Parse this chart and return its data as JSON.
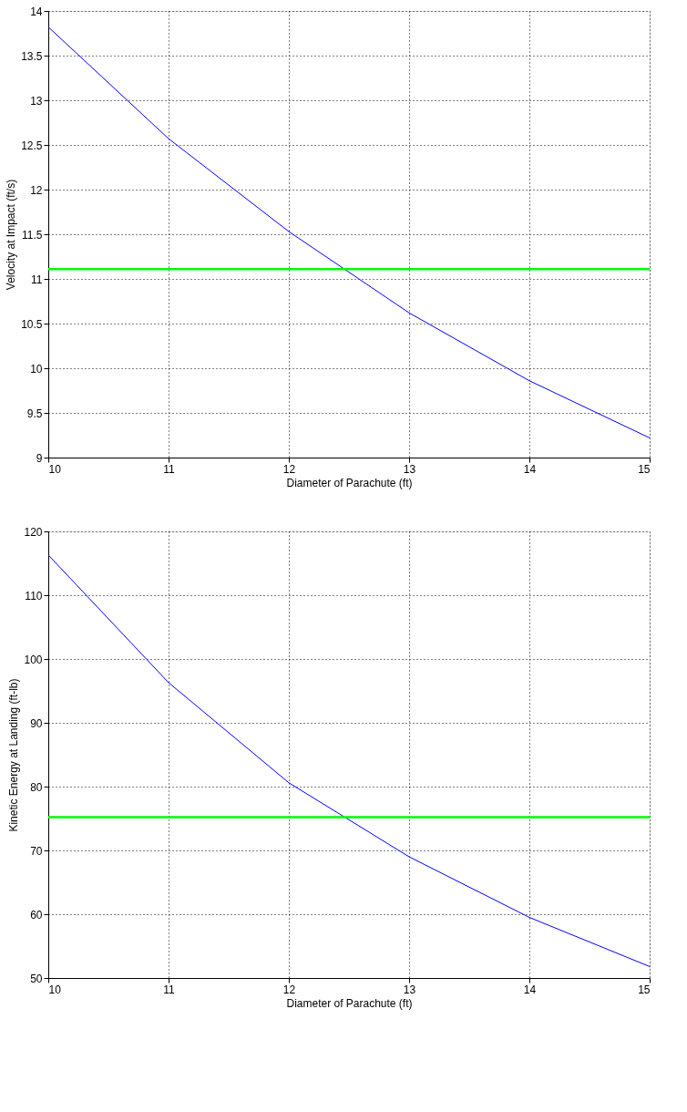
{
  "chart_data": [
    {
      "type": "line",
      "xlabel": "Diameter of Parachute (ft)",
      "ylabel": "Velocity at Impact (ft/s)",
      "x": [
        10,
        11,
        12,
        13,
        14,
        15
      ],
      "series": [
        {
          "color": "#0000ff",
          "values": [
            13.82,
            12.57,
            11.53,
            10.62,
            9.86,
            9.22
          ]
        }
      ],
      "xlim": [
        10,
        15
      ],
      "ylim": [
        9,
        14
      ],
      "xticks": [
        10,
        11,
        12,
        13,
        14,
        15
      ],
      "yticks": [
        9,
        9.5,
        10,
        10.5,
        11,
        11.5,
        12,
        12.5,
        13,
        13.5,
        14
      ],
      "grid": true,
      "line_style": "solid",
      "ref_lines": [
        {
          "axis": "y",
          "value": 11.11,
          "color": "#00ff00"
        }
      ]
    },
    {
      "type": "line",
      "xlabel": "Diameter of Parachute (ft)",
      "ylabel": "Kinetic Energy at Landing (ft-lb)",
      "x": [
        10,
        11,
        12,
        13,
        14,
        15
      ],
      "series": [
        {
          "color": "#0000ff",
          "values": [
            116.3,
            96.3,
            80.6,
            69.0,
            59.5,
            51.8
          ]
        }
      ],
      "xlim": [
        10,
        15
      ],
      "ylim": [
        50,
        120
      ],
      "xticks": [
        10,
        11,
        12,
        13,
        14,
        15
      ],
      "yticks": [
        50,
        60,
        70,
        80,
        90,
        100,
        110,
        120
      ],
      "grid": true,
      "line_style": "solid",
      "ref_lines": [
        {
          "axis": "y",
          "value": 75.2,
          "color": "#00ff00"
        }
      ]
    }
  ]
}
